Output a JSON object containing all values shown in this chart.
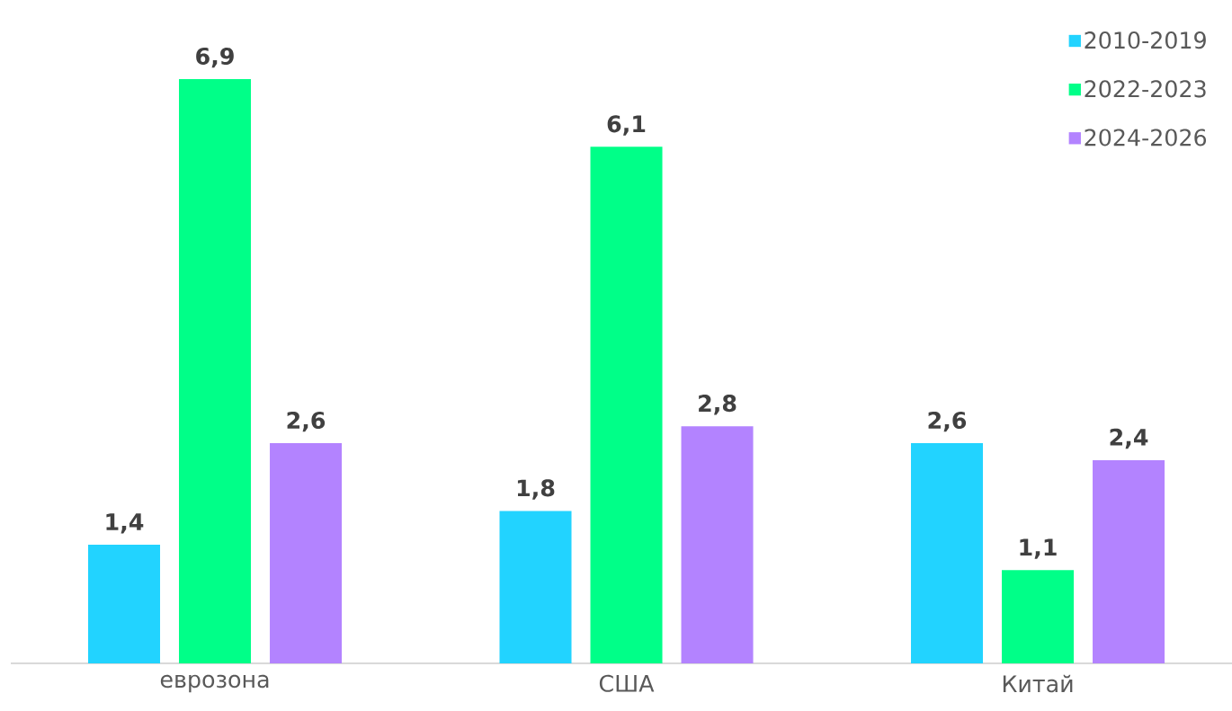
{
  "chart_data": {
    "type": "bar",
    "categories": [
      "еврозона",
      "США",
      "Китай"
    ],
    "series": [
      {
        "name": "2010-2019",
        "color": "#22d3ff",
        "values": [
          1.4,
          1.8,
          2.6
        ],
        "value_labels": [
          "1,4",
          "1,8",
          "2,6"
        ]
      },
      {
        "name": "2022-2023",
        "color": "#00ff88",
        "values": [
          6.9,
          6.1,
          1.1
        ],
        "value_labels": [
          "6,9",
          "6,1",
          "1,1"
        ]
      },
      {
        "name": "2024-2026",
        "color": "#b383ff",
        "values": [
          2.6,
          2.8,
          2.4
        ],
        "value_labels": [
          "2,6",
          "2,8",
          "2,4"
        ]
      }
    ],
    "legend": "top right"
  }
}
